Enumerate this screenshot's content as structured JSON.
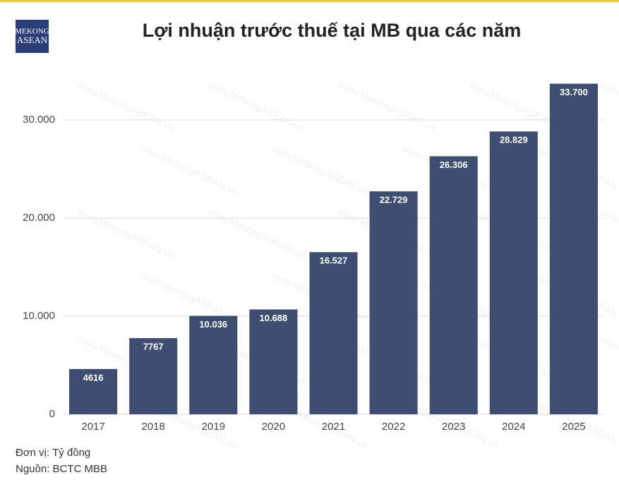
{
  "logo": {
    "line1": "MEKONG",
    "line2": "ASEAN"
  },
  "chart_data": {
    "type": "bar",
    "title": "Lợi nhuận trước thuế tại MB qua các năm",
    "categories": [
      "2017",
      "2018",
      "2019",
      "2020",
      "2021",
      "2022",
      "2023",
      "2024",
      "2025"
    ],
    "values": [
      4616,
      7767,
      10036,
      10688,
      16527,
      22729,
      26306,
      28829,
      33700
    ],
    "value_labels": [
      "4616",
      "7767",
      "10.036",
      "10.688",
      "16.527",
      "22.729",
      "26.306",
      "28.829",
      "33.700"
    ],
    "color": "#3d4e72",
    "ylim": [
      0,
      35000
    ],
    "yticks": [
      0,
      {
        "value": 10000,
        "label": "10.000"
      },
      {
        "value": 20000,
        "label": "20.000"
      },
      {
        "value": 30000,
        "label": "30.000"
      }
    ],
    "grid": true,
    "unit": "Đơn vị: Tỷ đồng",
    "source": "Nguồn: BCTC MBB",
    "watermark": "www.MekongASEAN.vn"
  }
}
